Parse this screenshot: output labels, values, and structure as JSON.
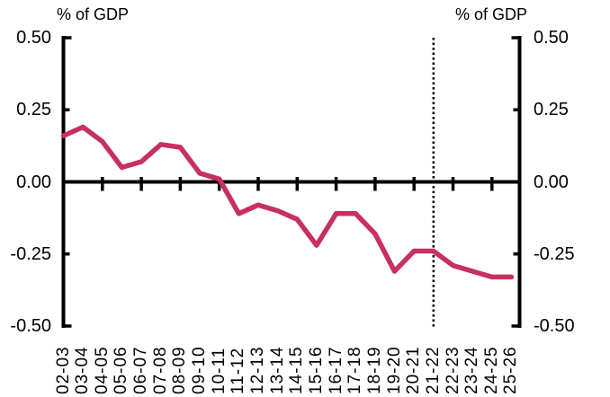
{
  "header": {
    "left_unit_label": "% of GDP",
    "right_unit_label": "% of GDP"
  },
  "chart_data": {
    "type": "line",
    "title": "",
    "xlabel": "",
    "ylabel_left": "% of GDP",
    "ylabel_right": "% of GDP",
    "ylim": [
      -0.5,
      0.5
    ],
    "yticks": [
      0.5,
      0.25,
      0.0,
      -0.25,
      -0.5
    ],
    "ytick_labels": [
      "0.50",
      "0.25",
      "0.00",
      "-0.25",
      "-0.50"
    ],
    "categories": [
      "02-03",
      "03-04",
      "04-05",
      "05-06",
      "06-07",
      "07-08",
      "08-09",
      "09-10",
      "10-11",
      "11-12",
      "12-13",
      "13-14",
      "14-15",
      "15-16",
      "16-17",
      "17-18",
      "18-19",
      "19-20",
      "20-21",
      "21-22",
      "22-23",
      "23-24",
      "24-25",
      "25-26"
    ],
    "values": [
      0.16,
      0.19,
      0.14,
      0.05,
      0.07,
      0.13,
      0.12,
      0.03,
      0.01,
      -0.11,
      -0.08,
      -0.1,
      -0.13,
      -0.22,
      -0.11,
      -0.11,
      -0.18,
      -0.31,
      -0.24,
      -0.24,
      -0.29,
      -0.31,
      -0.33,
      -0.33
    ],
    "vline": {
      "category": "21-22",
      "style": "dotted",
      "color": "#111111"
    },
    "line_color": "#c73060",
    "axis_color": "#000000",
    "grid": false,
    "legend": "none",
    "x_tick_interval": 2
  }
}
